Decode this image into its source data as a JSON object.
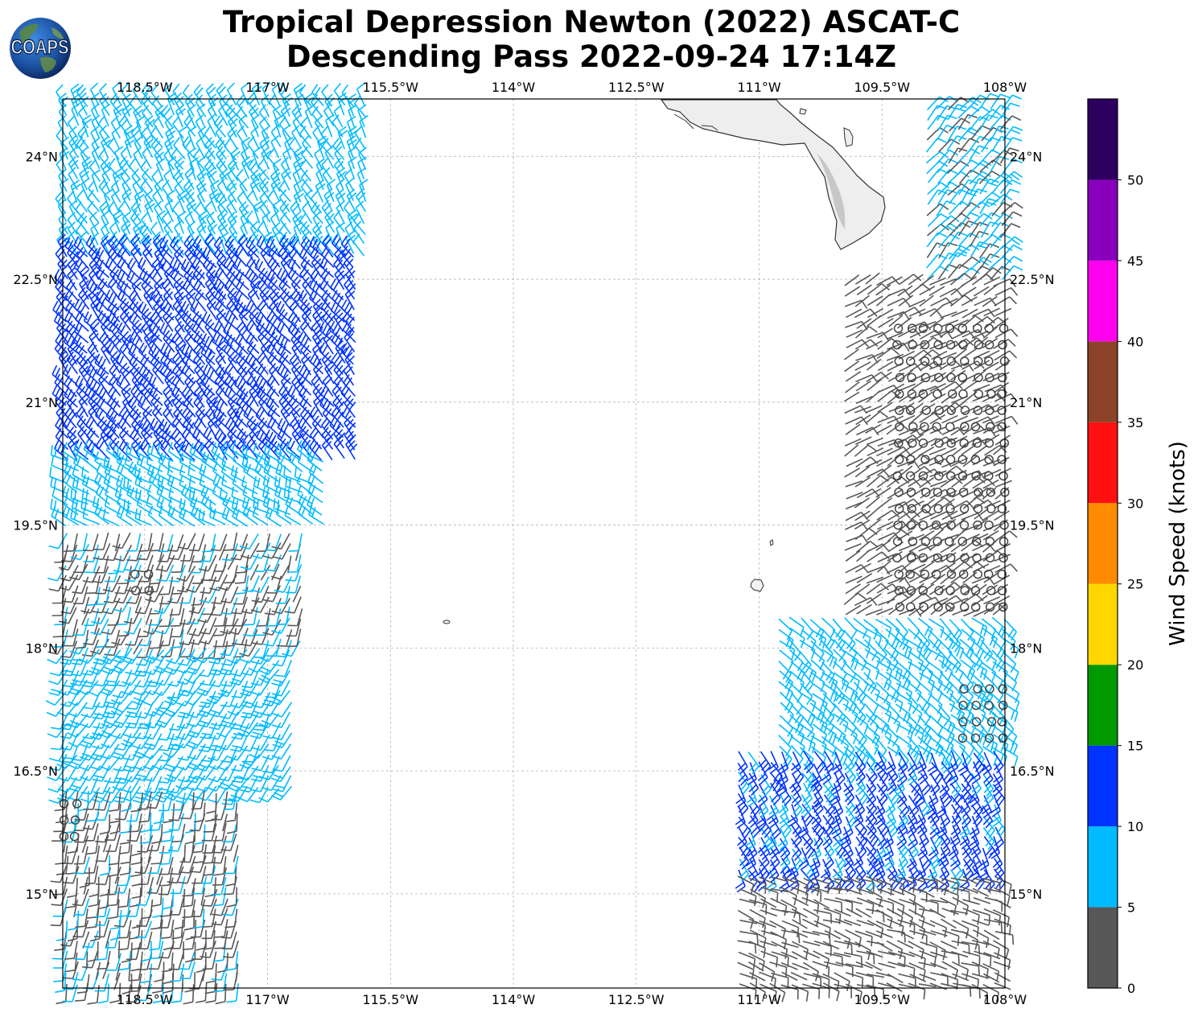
{
  "title": {
    "line1": "Tropical Depression Newton (2022) ASCAT-C",
    "line2": "Descending Pass 2022-09-24 17:14Z"
  },
  "logo": {
    "text": "COAPS"
  },
  "map": {
    "lon_range": [
      -119.5,
      -108.0
    ],
    "lat_range": [
      13.85,
      24.7
    ],
    "lon_ticks": [
      {
        "value": -118.5,
        "label": "118.5°W"
      },
      {
        "value": -117.0,
        "label": "117°W"
      },
      {
        "value": -115.5,
        "label": "115.5°W"
      },
      {
        "value": -114.0,
        "label": "114°W"
      },
      {
        "value": -112.5,
        "label": "112.5°W"
      },
      {
        "value": -111.0,
        "label": "111°W"
      },
      {
        "value": -109.5,
        "label": "109.5°W"
      },
      {
        "value": -108.0,
        "label": "108°W"
      }
    ],
    "lat_ticks": [
      {
        "value": 24.0,
        "label": "24°N"
      },
      {
        "value": 22.5,
        "label": "22.5°N"
      },
      {
        "value": 21.0,
        "label": "21°N"
      },
      {
        "value": 19.5,
        "label": "19.5°N"
      },
      {
        "value": 18.0,
        "label": "18°N"
      },
      {
        "value": 16.5,
        "label": "16.5°N"
      },
      {
        "value": 15.0,
        "label": "15°N"
      }
    ],
    "gridlines": true,
    "land_features": [
      "Baja California Sur peninsula",
      "Revillagigedo islands"
    ]
  },
  "colorbar": {
    "label": "Wind Speed (knots)",
    "ticks": [
      "0",
      "5",
      "10",
      "15",
      "20",
      "25",
      "30",
      "35",
      "40",
      "45",
      "50"
    ],
    "bands": [
      {
        "min": 0,
        "max": 5,
        "color": "#585858"
      },
      {
        "min": 5,
        "max": 10,
        "color": "#00bbff"
      },
      {
        "min": 10,
        "max": 15,
        "color": "#0033ff"
      },
      {
        "min": 15,
        "max": 20,
        "color": "#009900"
      },
      {
        "min": 20,
        "max": 25,
        "color": "#ffd700"
      },
      {
        "min": 25,
        "max": 30,
        "color": "#ff8c00"
      },
      {
        "min": 30,
        "max": 35,
        "color": "#ff1111"
      },
      {
        "min": 35,
        "max": 40,
        "color": "#8b4228"
      },
      {
        "min": 40,
        "max": 45,
        "color": "#ff00ee"
      },
      {
        "min": 45,
        "max": 50,
        "color": "#8800bb"
      },
      {
        "min": 50,
        "max": 55,
        "color": "#2d005f"
      }
    ]
  },
  "chart_data": {
    "type": "wind-barb-map",
    "title": "Tropical Depression Newton (2022) ASCAT-C Descending Pass 2022-09-24 17:14Z",
    "xlabel": "",
    "ylabel": "",
    "xlim": [
      -119.5,
      -108.0
    ],
    "ylim": [
      13.85,
      24.7
    ],
    "value_unit": "knots",
    "swaths": [
      {
        "name": "west",
        "regions": [
          {
            "lat": [
              22.8,
              24.7
            ],
            "lon": [
              -119.5,
              -115.7
            ],
            "speed_kt": 7,
            "dir_deg": 330
          },
          {
            "lat": [
              20.3,
              22.8
            ],
            "lon": [
              -119.5,
              -115.8
            ],
            "speed_kt": 12,
            "dir_deg": 320
          },
          {
            "lat": [
              19.5,
              20.3
            ],
            "lon": [
              -119.5,
              -116.2
            ],
            "speed_kt": 8,
            "dir_deg": 300
          },
          {
            "lat": [
              18.1,
              19.5
            ],
            "lon": [
              -119.5,
              -116.5
            ],
            "speed_kt": 4,
            "dir_deg": 200
          },
          {
            "lat": [
              16.3,
              18.1
            ],
            "lon": [
              -119.5,
              -116.7
            ],
            "speed_kt": 7,
            "dir_deg": 210
          },
          {
            "lat": [
              13.9,
              16.3
            ],
            "lon": [
              -119.5,
              -117.3
            ],
            "speed_kt": 4,
            "dir_deg": 190
          }
        ]
      },
      {
        "name": "east",
        "regions": [
          {
            "lat": [
              22.5,
              24.7
            ],
            "lon": [
              -109.0,
              -108.0
            ],
            "speed_kt": 6,
            "dir_deg": 40
          },
          {
            "lat": [
              18.4,
              22.5
            ],
            "lon": [
              -110.0,
              -108.0
            ],
            "speed_kt": 2,
            "dir_deg": 60
          },
          {
            "lat": [
              16.8,
              18.4
            ],
            "lon": [
              -110.8,
              -108.0
            ],
            "speed_kt": 7,
            "dir_deg": 130
          },
          {
            "lat": [
              15.3,
              16.8
            ],
            "lon": [
              -111.3,
              -108.0
            ],
            "speed_kt": 11,
            "dir_deg": 150
          },
          {
            "lat": [
              13.9,
              15.3
            ],
            "lon": [
              -111.3,
              -108.0
            ],
            "speed_kt": 3,
            "dir_deg": 110
          }
        ]
      }
    ],
    "calm_regions": [
      {
        "lat": [
          18.5,
          22.0
        ],
        "lon": [
          -109.3,
          -108.0
        ]
      },
      {
        "lat": [
          16.9,
          17.5
        ],
        "lon": [
          -108.5,
          -108.0
        ]
      },
      {
        "lat": [
          18.7,
          19.0
        ],
        "lon": [
          -118.6,
          -118.4
        ]
      },
      {
        "lat": [
          15.7,
          16.1
        ],
        "lon": [
          -119.5,
          -119.3
        ]
      }
    ]
  }
}
